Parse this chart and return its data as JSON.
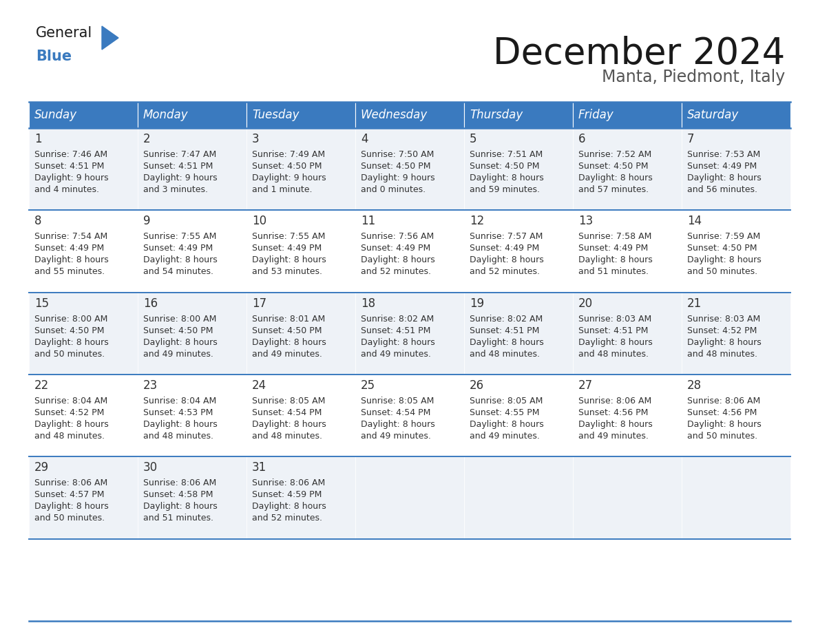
{
  "title": "December 2024",
  "subtitle": "Manta, Piedmont, Italy",
  "header_color": "#3a7abf",
  "header_text_color": "#ffffff",
  "cell_bg_odd": "#eef2f7",
  "cell_bg_even": "#ffffff",
  "border_color": "#3a7abf",
  "text_color": "#333333",
  "days_of_week": [
    "Sunday",
    "Monday",
    "Tuesday",
    "Wednesday",
    "Thursday",
    "Friday",
    "Saturday"
  ],
  "calendar_data": [
    {
      "day": 1,
      "sunrise": "7:46 AM",
      "sunset": "4:51 PM",
      "daylight_h": "9 hours",
      "daylight_m": "and 4 minutes."
    },
    {
      "day": 2,
      "sunrise": "7:47 AM",
      "sunset": "4:51 PM",
      "daylight_h": "9 hours",
      "daylight_m": "and 3 minutes."
    },
    {
      "day": 3,
      "sunrise": "7:49 AM",
      "sunset": "4:50 PM",
      "daylight_h": "9 hours",
      "daylight_m": "and 1 minute."
    },
    {
      "day": 4,
      "sunrise": "7:50 AM",
      "sunset": "4:50 PM",
      "daylight_h": "9 hours",
      "daylight_m": "and 0 minutes."
    },
    {
      "day": 5,
      "sunrise": "7:51 AM",
      "sunset": "4:50 PM",
      "daylight_h": "8 hours",
      "daylight_m": "and 59 minutes."
    },
    {
      "day": 6,
      "sunrise": "7:52 AM",
      "sunset": "4:50 PM",
      "daylight_h": "8 hours",
      "daylight_m": "and 57 minutes."
    },
    {
      "day": 7,
      "sunrise": "7:53 AM",
      "sunset": "4:49 PM",
      "daylight_h": "8 hours",
      "daylight_m": "and 56 minutes."
    },
    {
      "day": 8,
      "sunrise": "7:54 AM",
      "sunset": "4:49 PM",
      "daylight_h": "8 hours",
      "daylight_m": "and 55 minutes."
    },
    {
      "day": 9,
      "sunrise": "7:55 AM",
      "sunset": "4:49 PM",
      "daylight_h": "8 hours",
      "daylight_m": "and 54 minutes."
    },
    {
      "day": 10,
      "sunrise": "7:55 AM",
      "sunset": "4:49 PM",
      "daylight_h": "8 hours",
      "daylight_m": "and 53 minutes."
    },
    {
      "day": 11,
      "sunrise": "7:56 AM",
      "sunset": "4:49 PM",
      "daylight_h": "8 hours",
      "daylight_m": "and 52 minutes."
    },
    {
      "day": 12,
      "sunrise": "7:57 AM",
      "sunset": "4:49 PM",
      "daylight_h": "8 hours",
      "daylight_m": "and 52 minutes."
    },
    {
      "day": 13,
      "sunrise": "7:58 AM",
      "sunset": "4:49 PM",
      "daylight_h": "8 hours",
      "daylight_m": "and 51 minutes."
    },
    {
      "day": 14,
      "sunrise": "7:59 AM",
      "sunset": "4:50 PM",
      "daylight_h": "8 hours",
      "daylight_m": "and 50 minutes."
    },
    {
      "day": 15,
      "sunrise": "8:00 AM",
      "sunset": "4:50 PM",
      "daylight_h": "8 hours",
      "daylight_m": "and 50 minutes."
    },
    {
      "day": 16,
      "sunrise": "8:00 AM",
      "sunset": "4:50 PM",
      "daylight_h": "8 hours",
      "daylight_m": "and 49 minutes."
    },
    {
      "day": 17,
      "sunrise": "8:01 AM",
      "sunset": "4:50 PM",
      "daylight_h": "8 hours",
      "daylight_m": "and 49 minutes."
    },
    {
      "day": 18,
      "sunrise": "8:02 AM",
      "sunset": "4:51 PM",
      "daylight_h": "8 hours",
      "daylight_m": "and 49 minutes."
    },
    {
      "day": 19,
      "sunrise": "8:02 AM",
      "sunset": "4:51 PM",
      "daylight_h": "8 hours",
      "daylight_m": "and 48 minutes."
    },
    {
      "day": 20,
      "sunrise": "8:03 AM",
      "sunset": "4:51 PM",
      "daylight_h": "8 hours",
      "daylight_m": "and 48 minutes."
    },
    {
      "day": 21,
      "sunrise": "8:03 AM",
      "sunset": "4:52 PM",
      "daylight_h": "8 hours",
      "daylight_m": "and 48 minutes."
    },
    {
      "day": 22,
      "sunrise": "8:04 AM",
      "sunset": "4:52 PM",
      "daylight_h": "8 hours",
      "daylight_m": "and 48 minutes."
    },
    {
      "day": 23,
      "sunrise": "8:04 AM",
      "sunset": "4:53 PM",
      "daylight_h": "8 hours",
      "daylight_m": "and 48 minutes."
    },
    {
      "day": 24,
      "sunrise": "8:05 AM",
      "sunset": "4:54 PM",
      "daylight_h": "8 hours",
      "daylight_m": "and 48 minutes."
    },
    {
      "day": 25,
      "sunrise": "8:05 AM",
      "sunset": "4:54 PM",
      "daylight_h": "8 hours",
      "daylight_m": "and 49 minutes."
    },
    {
      "day": 26,
      "sunrise": "8:05 AM",
      "sunset": "4:55 PM",
      "daylight_h": "8 hours",
      "daylight_m": "and 49 minutes."
    },
    {
      "day": 27,
      "sunrise": "8:06 AM",
      "sunset": "4:56 PM",
      "daylight_h": "8 hours",
      "daylight_m": "and 49 minutes."
    },
    {
      "day": 28,
      "sunrise": "8:06 AM",
      "sunset": "4:56 PM",
      "daylight_h": "8 hours",
      "daylight_m": "and 50 minutes."
    },
    {
      "day": 29,
      "sunrise": "8:06 AM",
      "sunset": "4:57 PM",
      "daylight_h": "8 hours",
      "daylight_m": "and 50 minutes."
    },
    {
      "day": 30,
      "sunrise": "8:06 AM",
      "sunset": "4:58 PM",
      "daylight_h": "8 hours",
      "daylight_m": "and 51 minutes."
    },
    {
      "day": 31,
      "sunrise": "8:06 AM",
      "sunset": "4:59 PM",
      "daylight_h": "8 hours",
      "daylight_m": "and 52 minutes."
    }
  ],
  "title_fontsize": 38,
  "subtitle_fontsize": 17,
  "header_fontsize": 12,
  "day_num_fontsize": 12,
  "cell_text_fontsize": 9.0
}
